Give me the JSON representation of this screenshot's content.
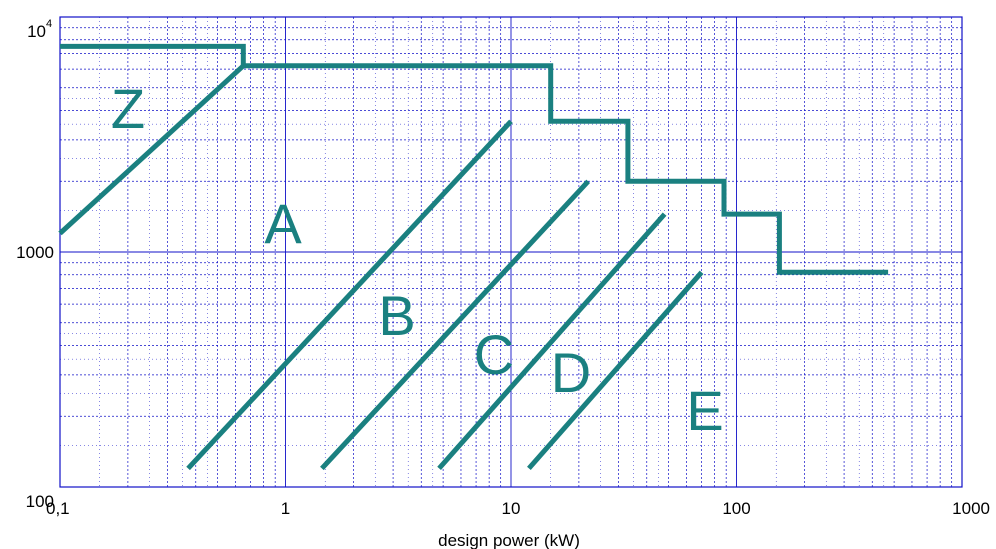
{
  "chart_data": {
    "type": "line",
    "title": "",
    "xlabel": "design power (kW)",
    "ylabel": "",
    "x_scale": "log",
    "y_scale": "log",
    "xlim": [
      0.1,
      1000
    ],
    "ylim": [
      100,
      10000
    ],
    "x_tick_labels": [
      {
        "value": 0.1,
        "label": "0,1"
      },
      {
        "value": 1,
        "label": "1"
      },
      {
        "value": 10,
        "label": "10"
      },
      {
        "value": 100,
        "label": "100"
      },
      {
        "value": 1000,
        "label": "1000"
      }
    ],
    "y_tick_labels": [
      {
        "value": 100,
        "label": "100"
      },
      {
        "value": 1000,
        "label": "1000"
      },
      {
        "value": 10000,
        "label": "10",
        "exponent": "4"
      }
    ],
    "grid": true,
    "grid_color": "#1010c8",
    "line_color": "#1a8080",
    "regions": [
      "Z",
      "A",
      "B",
      "C",
      "D",
      "E"
    ],
    "series": [
      {
        "points": [
          [
            0.1,
            1200
          ],
          [
            0.65,
            6200
          ]
        ]
      },
      {
        "points": [
          [
            0.37,
            120
          ],
          [
            10,
            3600
          ]
        ]
      },
      {
        "points": [
          [
            1.45,
            120
          ],
          [
            22,
            2000
          ]
        ]
      },
      {
        "points": [
          [
            4.8,
            120
          ],
          [
            48,
            1450
          ]
        ]
      },
      {
        "points": [
          [
            12,
            120
          ],
          [
            70,
            820
          ]
        ]
      },
      {
        "points": [
          [
            0.1,
            7500
          ],
          [
            0.65,
            7500
          ],
          [
            0.65,
            6200
          ],
          [
            15,
            6200
          ],
          [
            15,
            3600
          ],
          [
            33,
            3600
          ],
          [
            33,
            2000
          ],
          [
            88,
            2000
          ],
          [
            88,
            1450
          ],
          [
            155,
            1450
          ],
          [
            155,
            820
          ],
          [
            470,
            820
          ]
        ]
      }
    ]
  }
}
